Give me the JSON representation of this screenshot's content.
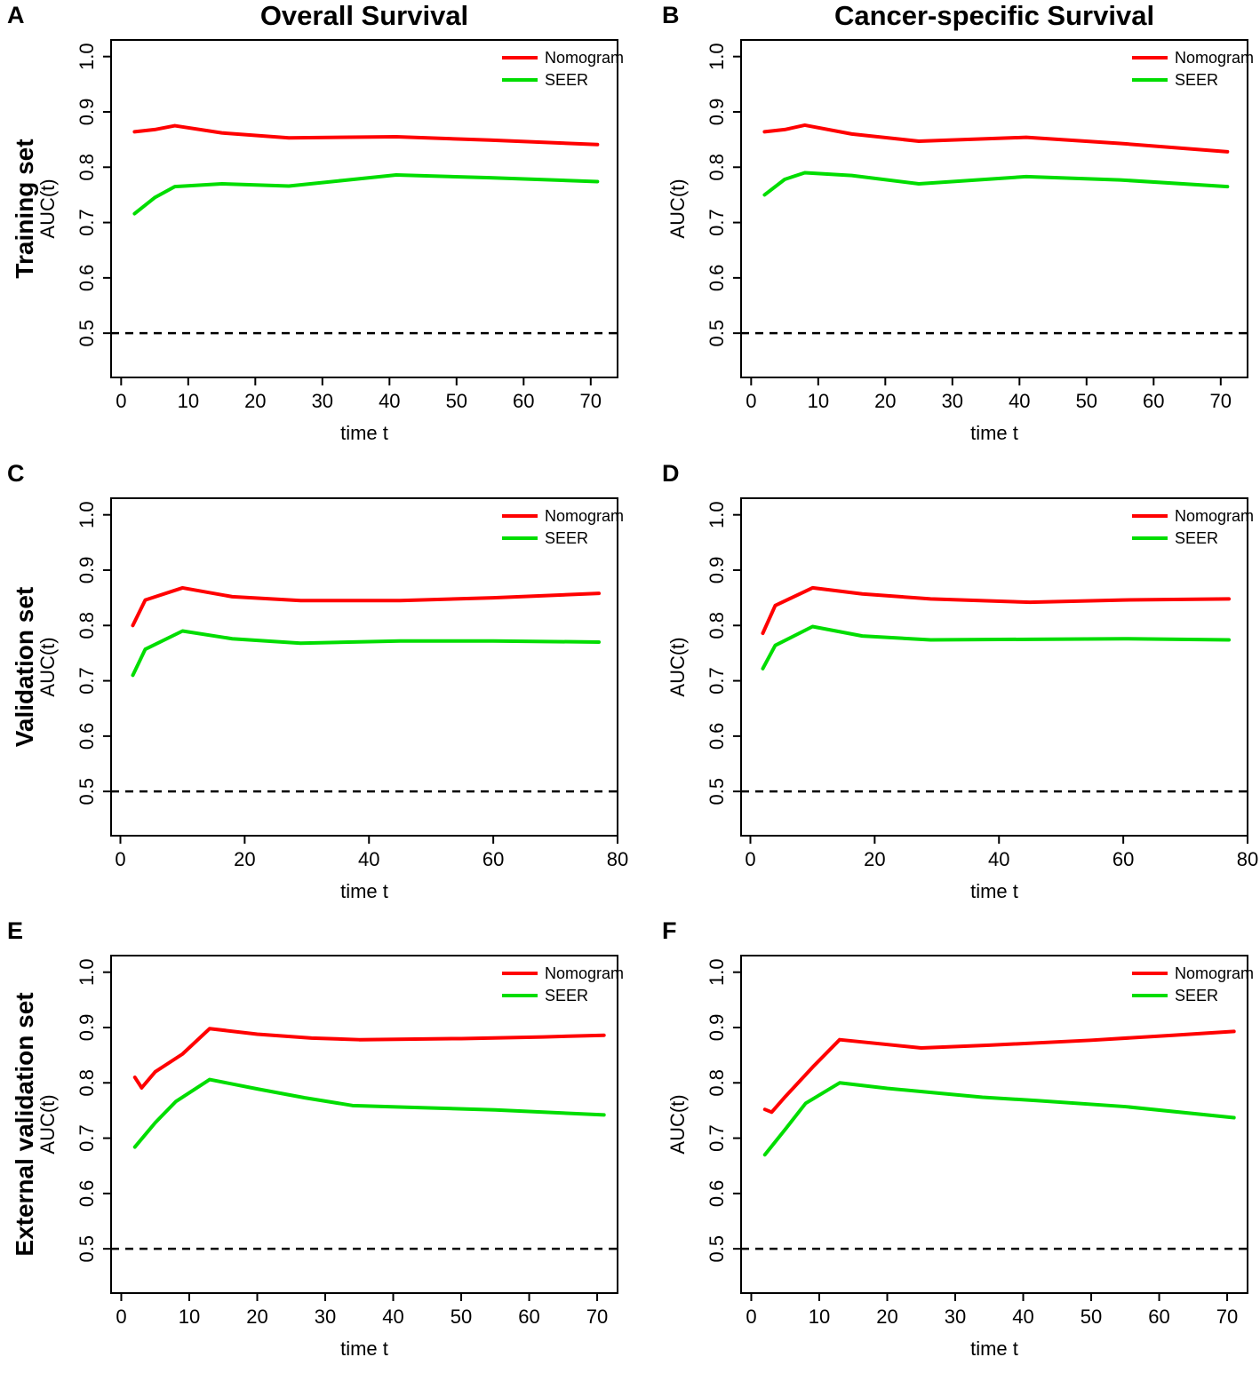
{
  "figure": {
    "column_titles": [
      "Overall Survival",
      "Cancer-specific Survival"
    ],
    "row_labels": [
      "Training set",
      "Validation set",
      "External validation set"
    ],
    "panel_letters": [
      "A",
      "B",
      "C",
      "D",
      "E",
      "F"
    ],
    "colors": {
      "nomogram": "#ff0000",
      "seer": "#00dd00",
      "reference": "#000000"
    }
  },
  "chart_data": [
    {
      "type": "line",
      "panel": "A",
      "row": "Training set",
      "column": "Overall Survival",
      "xlabel": "time t",
      "ylabel": "AUC(t)",
      "xlim": [
        -1.5,
        74
      ],
      "ylim": [
        0.42,
        1.03
      ],
      "xticks": [
        0,
        10,
        20,
        30,
        40,
        50,
        60,
        70
      ],
      "yticks": [
        0.5,
        0.6,
        0.7,
        0.8,
        0.9,
        1.0
      ],
      "reference_line_y": 0.5,
      "grid": false,
      "legend_position": "top-right",
      "series": [
        {
          "name": "Nomogram",
          "color": "#ff0000",
          "x": [
            2,
            5,
            8,
            15,
            25,
            41,
            55,
            71
          ],
          "y": [
            0.864,
            0.868,
            0.875,
            0.862,
            0.853,
            0.855,
            0.849,
            0.841
          ]
        },
        {
          "name": "SEER",
          "color": "#00dd00",
          "x": [
            2,
            5,
            8,
            15,
            25,
            33,
            41,
            55,
            71
          ],
          "y": [
            0.716,
            0.745,
            0.765,
            0.77,
            0.766,
            0.776,
            0.786,
            0.781,
            0.774
          ]
        }
      ]
    },
    {
      "type": "line",
      "panel": "B",
      "row": "Training set",
      "column": "Cancer-specific Survival",
      "xlabel": "time t",
      "ylabel": "AUC(t)",
      "xlim": [
        -1.5,
        74
      ],
      "ylim": [
        0.42,
        1.03
      ],
      "xticks": [
        0,
        10,
        20,
        30,
        40,
        50,
        60,
        70
      ],
      "yticks": [
        0.5,
        0.6,
        0.7,
        0.8,
        0.9,
        1.0
      ],
      "reference_line_y": 0.5,
      "grid": false,
      "legend_position": "top-right",
      "series": [
        {
          "name": "Nomogram",
          "color": "#ff0000",
          "x": [
            2,
            5,
            8,
            15,
            25,
            41,
            55,
            71
          ],
          "y": [
            0.864,
            0.868,
            0.876,
            0.86,
            0.847,
            0.854,
            0.843,
            0.828
          ]
        },
        {
          "name": "SEER",
          "color": "#00dd00",
          "x": [
            2,
            5,
            8,
            15,
            25,
            41,
            55,
            71
          ],
          "y": [
            0.75,
            0.778,
            0.79,
            0.785,
            0.77,
            0.783,
            0.777,
            0.765
          ]
        }
      ]
    },
    {
      "type": "line",
      "panel": "C",
      "row": "Validation set",
      "column": "Overall Survival",
      "xlabel": "time t",
      "ylabel": "AUC(t)",
      "xlim": [
        -1.5,
        80
      ],
      "ylim": [
        0.42,
        1.03
      ],
      "xticks": [
        0,
        20,
        40,
        60,
        80
      ],
      "yticks": [
        0.5,
        0.6,
        0.7,
        0.8,
        0.9,
        1.0
      ],
      "reference_line_y": 0.5,
      "grid": false,
      "legend_position": "top-right",
      "series": [
        {
          "name": "Nomogram",
          "color": "#ff0000",
          "x": [
            2,
            4,
            10,
            18,
            29,
            45,
            60,
            77
          ],
          "y": [
            0.8,
            0.846,
            0.868,
            0.852,
            0.845,
            0.845,
            0.85,
            0.858
          ]
        },
        {
          "name": "SEER",
          "color": "#00dd00",
          "x": [
            2,
            4,
            10,
            18,
            29,
            45,
            60,
            77
          ],
          "y": [
            0.71,
            0.757,
            0.79,
            0.776,
            0.768,
            0.772,
            0.772,
            0.77
          ]
        }
      ]
    },
    {
      "type": "line",
      "panel": "D",
      "row": "Validation set",
      "column": "Cancer-specific Survival",
      "xlabel": "time t",
      "ylabel": "AUC(t)",
      "xlim": [
        -1.5,
        80
      ],
      "ylim": [
        0.42,
        1.03
      ],
      "xticks": [
        0,
        20,
        40,
        60,
        80
      ],
      "yticks": [
        0.5,
        0.6,
        0.7,
        0.8,
        0.9,
        1.0
      ],
      "reference_line_y": 0.5,
      "grid": false,
      "legend_position": "top-right",
      "series": [
        {
          "name": "Nomogram",
          "color": "#ff0000",
          "x": [
            2,
            4,
            10,
            18,
            29,
            45,
            60,
            77
          ],
          "y": [
            0.786,
            0.836,
            0.868,
            0.857,
            0.848,
            0.842,
            0.846,
            0.848
          ]
        },
        {
          "name": "SEER",
          "color": "#00dd00",
          "x": [
            2,
            4,
            10,
            18,
            29,
            45,
            60,
            77
          ],
          "y": [
            0.722,
            0.764,
            0.798,
            0.781,
            0.774,
            0.775,
            0.776,
            0.774
          ]
        }
      ]
    },
    {
      "type": "line",
      "panel": "E",
      "row": "External validation set",
      "column": "Overall Survival",
      "xlabel": "time t",
      "ylabel": "AUC(t)",
      "xlim": [
        -1.5,
        73
      ],
      "ylim": [
        0.42,
        1.03
      ],
      "xticks": [
        0,
        10,
        20,
        30,
        40,
        50,
        60,
        70
      ],
      "yticks": [
        0.5,
        0.6,
        0.7,
        0.8,
        0.9,
        1.0
      ],
      "reference_line_y": 0.5,
      "grid": false,
      "legend_position": "top-right",
      "series": [
        {
          "name": "Nomogram",
          "color": "#ff0000",
          "x": [
            2,
            3,
            5,
            9,
            13,
            20,
            28,
            35,
            50,
            62,
            71
          ],
          "y": [
            0.81,
            0.791,
            0.82,
            0.852,
            0.898,
            0.888,
            0.881,
            0.878,
            0.88,
            0.883,
            0.886
          ]
        },
        {
          "name": "SEER",
          "color": "#00dd00",
          "x": [
            2,
            5,
            8,
            13,
            20,
            27,
            34,
            42,
            55,
            71
          ],
          "y": [
            0.684,
            0.728,
            0.766,
            0.806,
            0.789,
            0.773,
            0.759,
            0.756,
            0.751,
            0.742
          ]
        }
      ]
    },
    {
      "type": "line",
      "panel": "F",
      "row": "External validation set",
      "column": "Cancer-specific Survival",
      "xlabel": "time t",
      "ylabel": "AUC(t)",
      "xlim": [
        -1.5,
        73
      ],
      "ylim": [
        0.42,
        1.03
      ],
      "xticks": [
        0,
        10,
        20,
        30,
        40,
        50,
        60,
        70
      ],
      "yticks": [
        0.5,
        0.6,
        0.7,
        0.8,
        0.9,
        1.0
      ],
      "reference_line_y": 0.5,
      "grid": false,
      "legend_position": "top-right",
      "series": [
        {
          "name": "Nomogram",
          "color": "#ff0000",
          "x": [
            2,
            3,
            5,
            9,
            13,
            25,
            35,
            50,
            62,
            71
          ],
          "y": [
            0.752,
            0.747,
            0.775,
            0.828,
            0.878,
            0.863,
            0.868,
            0.877,
            0.886,
            0.893
          ]
        },
        {
          "name": "SEER",
          "color": "#00dd00",
          "x": [
            2,
            5,
            8,
            13,
            20,
            27,
            34,
            42,
            55,
            71
          ],
          "y": [
            0.67,
            0.716,
            0.763,
            0.8,
            0.79,
            0.782,
            0.774,
            0.768,
            0.757,
            0.737
          ]
        }
      ]
    }
  ]
}
